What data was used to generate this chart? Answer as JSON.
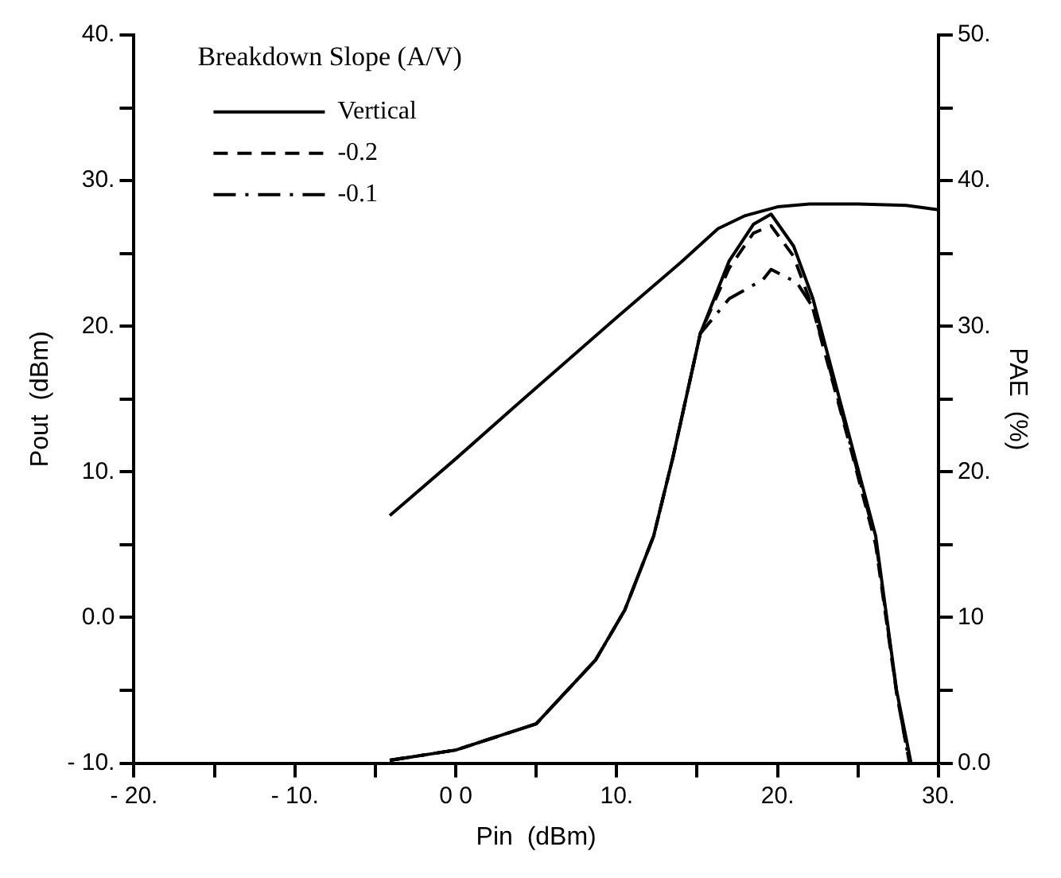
{
  "chart_data": {
    "type": "line",
    "xlabel": "Pin  (dBm)",
    "ylabel": "Pout  (dBm)",
    "y2label": "PAE  (%)",
    "legend_title": "Breakdown Slope (A/V)",
    "legend": "top left",
    "grid": false,
    "marker": "none",
    "xlim": [
      -20,
      30
    ],
    "xticks": [
      {
        "value": -20,
        "label": "- 20."
      },
      {
        "value": -15,
        "label": null
      },
      {
        "value": -10,
        "label": "- 10."
      },
      {
        "value": -5,
        "label": null
      },
      {
        "value": 0,
        "label": "0 0"
      },
      {
        "value": 5,
        "label": null
      },
      {
        "value": 10,
        "label": "10."
      },
      {
        "value": 15,
        "label": null
      },
      {
        "value": 20,
        "label": "20."
      },
      {
        "value": 25,
        "label": null
      },
      {
        "value": 30,
        "label": "30."
      }
    ],
    "ylim": [
      -10,
      40
    ],
    "yticks": [
      {
        "value": -10,
        "label": "- 10."
      },
      {
        "value": -5,
        "label": null
      },
      {
        "value": 0,
        "label": "0.0"
      },
      {
        "value": 5,
        "label": null
      },
      {
        "value": 10,
        "label": "10."
      },
      {
        "value": 15,
        "label": null
      },
      {
        "value": 20,
        "label": "20."
      },
      {
        "value": 25,
        "label": null
      },
      {
        "value": 30,
        "label": "30."
      },
      {
        "value": 35,
        "label": null
      },
      {
        "value": 40,
        "label": "40."
      }
    ],
    "y2lim": [
      0,
      50
    ],
    "y2ticks": [
      {
        "value": 0,
        "label": "0.0"
      },
      {
        "value": 5,
        "label": null
      },
      {
        "value": 10,
        "label": "10"
      },
      {
        "value": 15,
        "label": null
      },
      {
        "value": 20,
        "label": "20."
      },
      {
        "value": 25,
        "label": null
      },
      {
        "value": 30,
        "label": "30."
      },
      {
        "value": 35,
        "label": null
      },
      {
        "value": 40,
        "label": "40."
      },
      {
        "value": 45,
        "label": null
      },
      {
        "value": 50,
        "label": "50."
      }
    ],
    "series": [
      {
        "name": "Vertical",
        "color": "#000000",
        "line_style": "solid",
        "axis": "y2",
        "x": [
          -4.1,
          0,
          5,
          8.7,
          10.5,
          12.3,
          13.5,
          15.2,
          17,
          18.5,
          19.6,
          21,
          22.2,
          24.5,
          26.1,
          27.4,
          28.3
        ],
        "values": [
          0.2,
          0.9,
          2.7,
          7.1,
          10.5,
          15.6,
          21,
          29.5,
          34.5,
          37,
          37.7,
          35.5,
          31.9,
          22.3,
          15.6,
          5.0,
          0
        ]
      },
      {
        "name": "-0.2",
        "color": "#000000",
        "line_style": "dashed",
        "axis": "y2",
        "x": [
          -4.1,
          0,
          5,
          8.7,
          10.5,
          12.3,
          13.5,
          15.2,
          17,
          18.5,
          19.6,
          21,
          22.2,
          24.5,
          26.1,
          27.4,
          28.2
        ],
        "values": [
          0.2,
          0.9,
          2.7,
          7.1,
          10.5,
          15.6,
          21,
          29.5,
          34,
          36.4,
          36.9,
          34.8,
          31.2,
          21.8,
          15.0,
          4.8,
          0
        ]
      },
      {
        "name": "-0.1",
        "color": "#000000",
        "line_style": "dashdot",
        "axis": "y2",
        "x": [
          -4.1,
          0,
          5,
          8.7,
          10.5,
          12.3,
          13.5,
          15.2,
          17,
          19.1,
          19.6,
          21.2,
          22.2,
          24.5,
          26.1,
          27.4,
          28.2
        ],
        "values": [
          0.2,
          0.9,
          2.7,
          7.1,
          10.5,
          15.6,
          21,
          29.5,
          31.9,
          33.2,
          33.9,
          33.0,
          31.3,
          22.0,
          15.3,
          4.9,
          0
        ]
      },
      {
        "color": "#000000",
        "line_style": "solid",
        "x": [
          -4.1,
          0,
          4.4,
          10,
          14,
          16.3,
          18,
          20,
          22,
          25,
          28,
          30
        ],
        "values": [
          7.0,
          10.9,
          15.2,
          20.6,
          24.4,
          26.7,
          27.6,
          28.2,
          28.4,
          28.4,
          28.3,
          28.0
        ]
      }
    ]
  }
}
